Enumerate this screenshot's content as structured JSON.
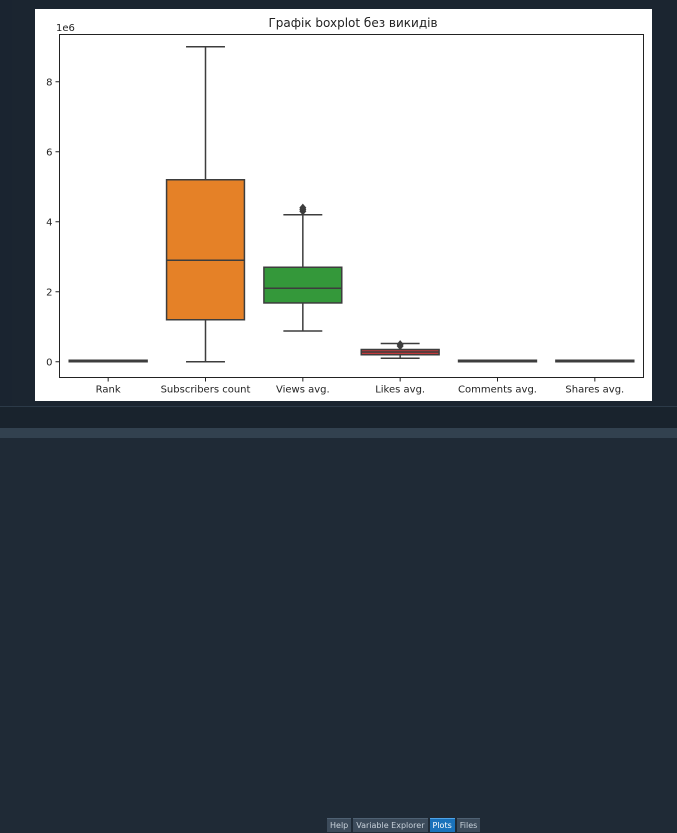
{
  "tabs": [
    {
      "label": "Help",
      "active": false
    },
    {
      "label": "Variable Explorer",
      "active": false
    },
    {
      "label": "Plots",
      "active": true
    },
    {
      "label": "Files",
      "active": false
    }
  ],
  "chart_data": {
    "type": "boxplot",
    "title": "Графік boxplot без викидів",
    "xlabel": "",
    "ylabel": "",
    "y_scale_label": "1e6",
    "ylim": [
      -0.45,
      9.35
    ],
    "yticks": [
      0,
      2,
      4,
      6,
      8
    ],
    "grid": false,
    "categories": [
      "Rank",
      "Subscribers count",
      "Views avg.",
      "Likes avg.",
      "Comments avg.",
      "Shares avg."
    ],
    "series": [
      {
        "category": "Rank",
        "color": "#3a74b0",
        "whisker_low": 0.0,
        "q1": 0.0,
        "median": 0.0,
        "q3": 0.0,
        "whisker_high": 0.0,
        "outliers": []
      },
      {
        "category": "Subscribers count",
        "color": "#e58127",
        "whisker_low": 0.0,
        "q1": 1.2,
        "median": 2.9,
        "q3": 5.2,
        "whisker_high": 9.0,
        "outliers": []
      },
      {
        "category": "Views avg.",
        "color": "#34983a",
        "whisker_low": 0.88,
        "q1": 1.68,
        "median": 2.1,
        "q3": 2.7,
        "whisker_high": 4.2,
        "outliers": [
          4.3,
          4.35,
          4.4
        ]
      },
      {
        "category": "Likes avg.",
        "color": "#c23a3c",
        "whisker_low": 0.1,
        "q1": 0.2,
        "median": 0.28,
        "q3": 0.35,
        "whisker_high": 0.52,
        "outliers": [
          0.45,
          0.5
        ]
      },
      {
        "category": "Comments avg.",
        "color": "#8c67b3",
        "whisker_low": 0.0,
        "q1": 0.0,
        "median": 0.0,
        "q3": 0.0,
        "whisker_high": 0.0,
        "outliers": []
      },
      {
        "category": "Shares avg.",
        "color": "#8a5547",
        "whisker_low": 0.0,
        "q1": 0.0,
        "median": 0.0,
        "q3": 0.0,
        "whisker_high": 0.0,
        "outliers": []
      }
    ]
  }
}
